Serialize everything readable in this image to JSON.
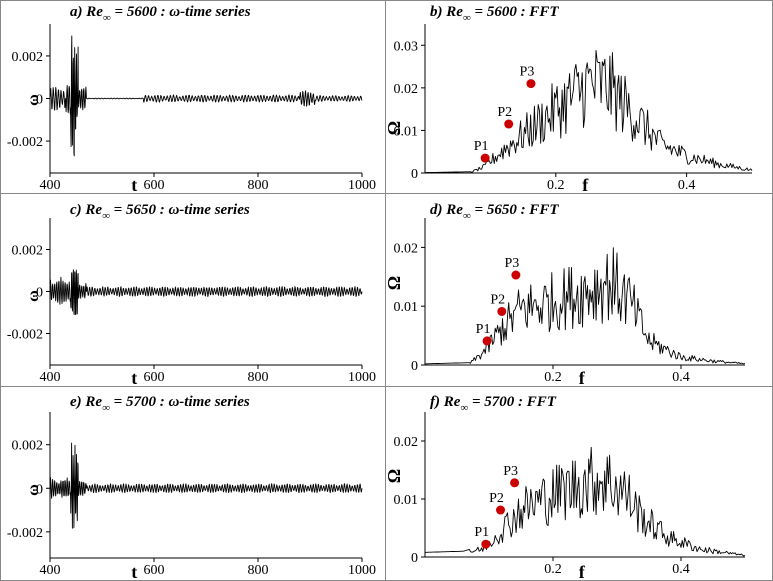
{
  "chart_data": [
    {
      "id": "a",
      "type": "line",
      "title_prefix": "a) Re",
      "title_sub": "∞",
      "title_suffix": " = 5600 : ω-time series",
      "xlabel": "t",
      "ylabel": "ω",
      "xlim": [
        400,
        1000
      ],
      "ylim": [
        -0.0035,
        0.0035
      ],
      "xticks": [
        400,
        600,
        800,
        1000
      ],
      "yticks": [
        {
          "v": 0.002,
          "label": "0.002"
        },
        {
          "v": 0,
          "label": "0"
        },
        {
          "v": -0.002,
          "label": "-0.002"
        }
      ],
      "series": [
        {
          "bursts": [
            {
              "start": 400,
              "end": 430,
              "amp": 0.0006,
              "period": 5
            },
            {
              "start": 430,
              "end": 440,
              "amp": 0.0008,
              "period": 4
            },
            {
              "start": 440,
              "end": 455,
              "amp": 0.0034,
              "period": 3
            },
            {
              "start": 455,
              "end": 470,
              "amp": 0.0006,
              "period": 4
            },
            {
              "start": 470,
              "end": 580,
              "amp": 2e-05,
              "period": 6
            },
            {
              "start": 580,
              "end": 880,
              "amp": 0.00018,
              "period": 6
            },
            {
              "start": 880,
              "end": 910,
              "amp": 0.0004,
              "period": 5
            },
            {
              "start": 910,
              "end": 1000,
              "amp": 0.00015,
              "period": 6
            }
          ]
        }
      ]
    },
    {
      "id": "b",
      "type": "line",
      "title_prefix": "b) Re",
      "title_sub": "∞",
      "title_suffix": " = 5600 : FFT",
      "xlabel": "f",
      "ylabel": "Ω",
      "xlim": [
        0,
        0.5
      ],
      "ylim": [
        0,
        0.035
      ],
      "xticks": [
        {
          "v": 0.2,
          "label": "0.2"
        },
        {
          "v": 0.4,
          "label": "0.4"
        }
      ],
      "yticks": [
        {
          "v": 0.03,
          "label": "0.03"
        },
        {
          "v": 0.02,
          "label": "0.02"
        },
        {
          "v": 0.01,
          "label": "0.01"
        },
        {
          "v": 0,
          "label": "0"
        }
      ],
      "envelope": [
        [
          0,
          0.0001
        ],
        [
          0.07,
          0.0003
        ],
        [
          0.09,
          0.002
        ],
        [
          0.12,
          0.008
        ],
        [
          0.16,
          0.015
        ],
        [
          0.2,
          0.022
        ],
        [
          0.25,
          0.031
        ],
        [
          0.28,
          0.03
        ],
        [
          0.32,
          0.02
        ],
        [
          0.36,
          0.01
        ],
        [
          0.4,
          0.006
        ],
        [
          0.45,
          0.003
        ],
        [
          0.5,
          0.001
        ]
      ],
      "peaks": [
        {
          "label": "P1",
          "f": 0.092,
          "v": 0.0035
        },
        {
          "label": "P2",
          "f": 0.128,
          "v": 0.0115
        },
        {
          "label": "P3",
          "f": 0.162,
          "v": 0.021
        }
      ]
    },
    {
      "id": "c",
      "type": "line",
      "title_prefix": "c) Re",
      "title_sub": "∞",
      "title_suffix": " = 5650 : ω-time series",
      "xlabel": "t",
      "ylabel": "ω",
      "xlim": [
        400,
        1000
      ],
      "ylim": [
        -0.0035,
        0.0035
      ],
      "xticks": [
        400,
        600,
        800,
        1000
      ],
      "yticks": [
        {
          "v": 0.002,
          "label": "0.002"
        },
        {
          "v": 0,
          "label": "0"
        },
        {
          "v": -0.002,
          "label": "-0.002"
        }
      ],
      "series": [
        {
          "bursts": [
            {
              "start": 400,
              "end": 440,
              "amp": 0.0007,
              "period": 4
            },
            {
              "start": 440,
              "end": 455,
              "amp": 0.0013,
              "period": 3
            },
            {
              "start": 455,
              "end": 470,
              "amp": 0.0005,
              "period": 4
            },
            {
              "start": 470,
              "end": 1000,
              "amp": 0.00025,
              "period": 5
            }
          ]
        }
      ]
    },
    {
      "id": "d",
      "type": "line",
      "title_prefix": "d) Re",
      "title_sub": "∞",
      "title_suffix": " = 5650 : FFT",
      "xlabel": "f",
      "ylabel": "Ω",
      "xlim": [
        0,
        0.5
      ],
      "ylim": [
        0,
        0.025
      ],
      "xticks": [
        {
          "v": 0.2,
          "label": "0.2"
        },
        {
          "v": 0.4,
          "label": "0.4"
        }
      ],
      "yticks": [
        {
          "v": 0.02,
          "label": "0.02"
        },
        {
          "v": 0.01,
          "label": "0.01"
        },
        {
          "v": 0,
          "label": "0"
        }
      ],
      "envelope": [
        [
          0,
          0.0002
        ],
        [
          0.07,
          0.0004
        ],
        [
          0.09,
          0.003
        ],
        [
          0.12,
          0.009
        ],
        [
          0.15,
          0.014
        ],
        [
          0.2,
          0.016
        ],
        [
          0.26,
          0.019
        ],
        [
          0.29,
          0.021
        ],
        [
          0.32,
          0.016
        ],
        [
          0.35,
          0.006
        ],
        [
          0.4,
          0.002
        ],
        [
          0.45,
          0.001
        ],
        [
          0.5,
          0.0003
        ]
      ],
      "peaks": [
        {
          "label": "P1",
          "f": 0.097,
          "v": 0.0041
        },
        {
          "label": "P2",
          "f": 0.12,
          "v": 0.0091
        },
        {
          "label": "P3",
          "f": 0.142,
          "v": 0.0153
        }
      ]
    },
    {
      "id": "e",
      "type": "line",
      "title_prefix": "e) Re",
      "title_sub": "∞",
      "title_suffix": " = 5700 : ω-time series",
      "xlabel": "t",
      "ylabel": "ω",
      "xlim": [
        400,
        1000
      ],
      "ylim": [
        -0.0032,
        0.0035
      ],
      "xticks": [
        400,
        600,
        800,
        1000
      ],
      "yticks": [
        {
          "v": 0.002,
          "label": "0.002"
        },
        {
          "v": 0,
          "label": "0"
        },
        {
          "v": -0.002,
          "label": "-0.002"
        }
      ],
      "series": [
        {
          "bursts": [
            {
              "start": 400,
              "end": 440,
              "amp": 0.0005,
              "period": 4
            },
            {
              "start": 440,
              "end": 455,
              "amp": 0.0024,
              "period": 3
            },
            {
              "start": 455,
              "end": 470,
              "amp": 0.0004,
              "period": 4
            },
            {
              "start": 470,
              "end": 1000,
              "amp": 0.00022,
              "period": 5
            }
          ]
        }
      ]
    },
    {
      "id": "f",
      "type": "line",
      "title_prefix": "f) Re",
      "title_sub": "∞",
      "title_suffix": " = 5700 : FFT",
      "xlabel": "f",
      "ylabel": "Ω",
      "xlim": [
        0,
        0.5
      ],
      "ylim": [
        0,
        0.025
      ],
      "xticks": [
        {
          "v": 0.2,
          "label": "0.2"
        },
        {
          "v": 0.4,
          "label": "0.4"
        }
      ],
      "yticks": [
        {
          "v": 0.02,
          "label": "0.02"
        },
        {
          "v": 0.01,
          "label": "0.01"
        },
        {
          "v": 0,
          "label": "0"
        }
      ],
      "envelope": [
        [
          0,
          0.0008
        ],
        [
          0.06,
          0.001
        ],
        [
          0.09,
          0.002
        ],
        [
          0.12,
          0.007
        ],
        [
          0.15,
          0.012
        ],
        [
          0.2,
          0.016
        ],
        [
          0.25,
          0.019
        ],
        [
          0.28,
          0.02
        ],
        [
          0.31,
          0.017
        ],
        [
          0.34,
          0.01
        ],
        [
          0.38,
          0.005
        ],
        [
          0.43,
          0.002
        ],
        [
          0.5,
          0.0004
        ]
      ],
      "peaks": [
        {
          "label": "P1",
          "f": 0.095,
          "v": 0.0022
        },
        {
          "label": "P2",
          "f": 0.118,
          "v": 0.0081
        },
        {
          "label": "P3",
          "f": 0.14,
          "v": 0.0128
        }
      ]
    }
  ]
}
